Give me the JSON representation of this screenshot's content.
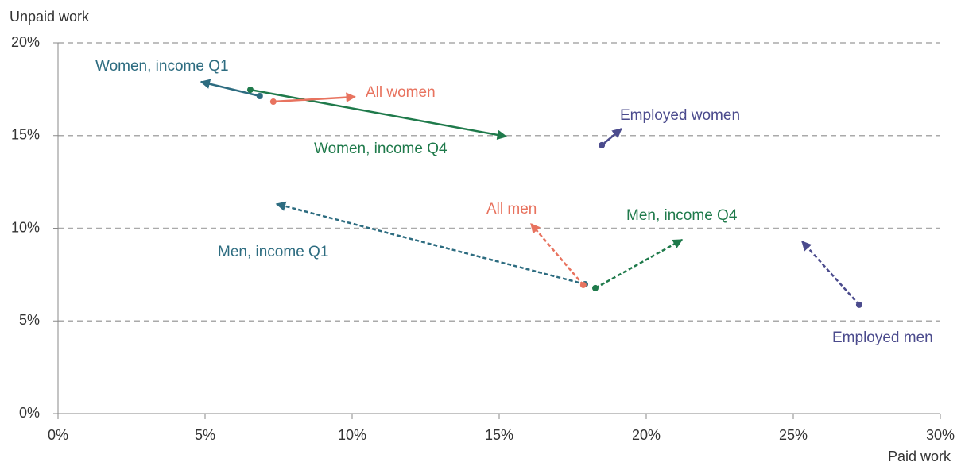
{
  "chart_data": {
    "type": "arrow",
    "ylabel": "Unpaid work",
    "xlabel": "Paid work",
    "xlim": [
      0,
      30
    ],
    "ylim": [
      0,
      20
    ],
    "xticks": [
      {
        "value": 0,
        "label": "0%"
      },
      {
        "value": 5,
        "label": "5%"
      },
      {
        "value": 10,
        "label": "10%"
      },
      {
        "value": 15,
        "label": "15%"
      },
      {
        "value": 20,
        "label": "20%"
      },
      {
        "value": 25,
        "label": "25%"
      },
      {
        "value": 30,
        "label": "30%"
      }
    ],
    "yticks": [
      {
        "value": 0,
        "label": "0%"
      },
      {
        "value": 5,
        "label": "5%"
      },
      {
        "value": 10,
        "label": "10%"
      },
      {
        "value": 15,
        "label": "15%"
      },
      {
        "value": 20,
        "label": "20%"
      }
    ],
    "grid": true,
    "series": [
      {
        "name": "Women, income Q1",
        "color": "#2d6c80",
        "dashed": false,
        "x": [
          6.86,
          4.86
        ],
        "values": [
          17.13,
          17.9
        ]
      },
      {
        "name": "Women, income Q4",
        "color": "#1f7a4b",
        "dashed": false,
        "x": [
          6.54,
          15.24
        ],
        "values": [
          17.47,
          14.95
        ]
      },
      {
        "name": "All women",
        "color": "#e8735f",
        "dashed": false,
        "x": [
          7.32,
          10.1
        ],
        "values": [
          16.83,
          17.09
        ]
      },
      {
        "name": "Employed women",
        "color": "#4b4b8d",
        "dashed": false,
        "x": [
          18.49,
          19.16
        ],
        "values": [
          14.48,
          15.37
        ]
      },
      {
        "name": "Men, income Q1",
        "color": "#2d6c80",
        "dashed": true,
        "x": [
          17.92,
          7.43
        ],
        "values": [
          6.98,
          11.31
        ]
      },
      {
        "name": "All men",
        "color": "#e8735f",
        "dashed": true,
        "x": [
          17.86,
          16.08
        ],
        "values": [
          6.94,
          10.24
        ]
      },
      {
        "name": "Men, income Q4",
        "color": "#1f7a4b",
        "dashed": true,
        "x": [
          18.27,
          21.22
        ],
        "values": [
          6.77,
          9.38
        ]
      },
      {
        "name": "Employed men",
        "color": "#4b4b8d",
        "dashed": true,
        "x": [
          27.24,
          25.3
        ],
        "values": [
          5.87,
          9.29
        ]
      }
    ]
  }
}
